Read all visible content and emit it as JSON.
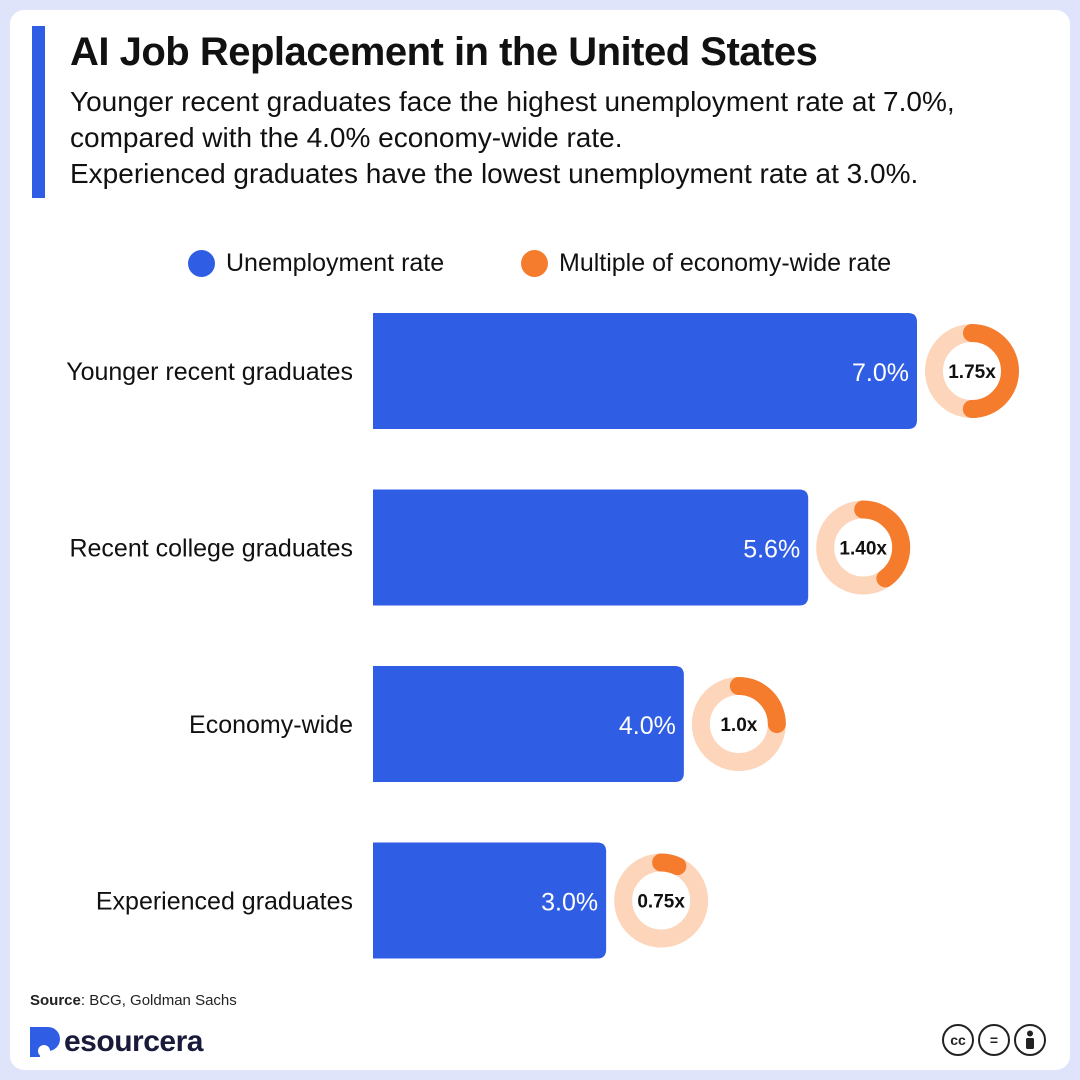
{
  "header": {
    "title": "AI Job Replacement in the United States",
    "subtitle_lines": [
      "Younger recent graduates face the highest unemployment rate at 7.0%,",
      "compared with the 4.0% economy-wide rate.",
      "Experienced graduates have the lowest unemployment rate at 3.0%."
    ]
  },
  "legend": {
    "unemployment_label": "Unemployment rate",
    "multiple_label": "Multiple of economy-wide rate"
  },
  "colors": {
    "bar": "#2f5de4",
    "ring": "#f47c2c",
    "ring_track": "#fcd5bb",
    "accent": "#2f5de4"
  },
  "chart_data": {
    "type": "bar",
    "orientation": "horizontal",
    "categories": [
      "Younger recent graduates",
      "Recent college graduates",
      "Economy-wide",
      "Experienced graduates"
    ],
    "series": [
      {
        "name": "Unemployment rate",
        "values": [
          7.0,
          5.6,
          4.0,
          3.0
        ],
        "labels": [
          "7.0%",
          "5.6%",
          "4.0%",
          "3.0%"
        ]
      },
      {
        "name": "Multiple of economy-wide rate",
        "values": [
          1.75,
          1.4,
          1.0,
          0.75
        ],
        "labels": [
          "1.75x",
          "1.40x",
          "1.0x",
          "0.75x"
        ],
        "ring_fractions": [
          0.5,
          0.4,
          0.25,
          0.07
        ]
      }
    ],
    "xlim": [
      0,
      7.0
    ],
    "legend_position": "top"
  },
  "footer": {
    "source_label": "Source",
    "source_text": ": BCG, Goldman Sachs",
    "brand_name": "esourcera",
    "license_icons": [
      "cc",
      "equals",
      "person"
    ]
  }
}
